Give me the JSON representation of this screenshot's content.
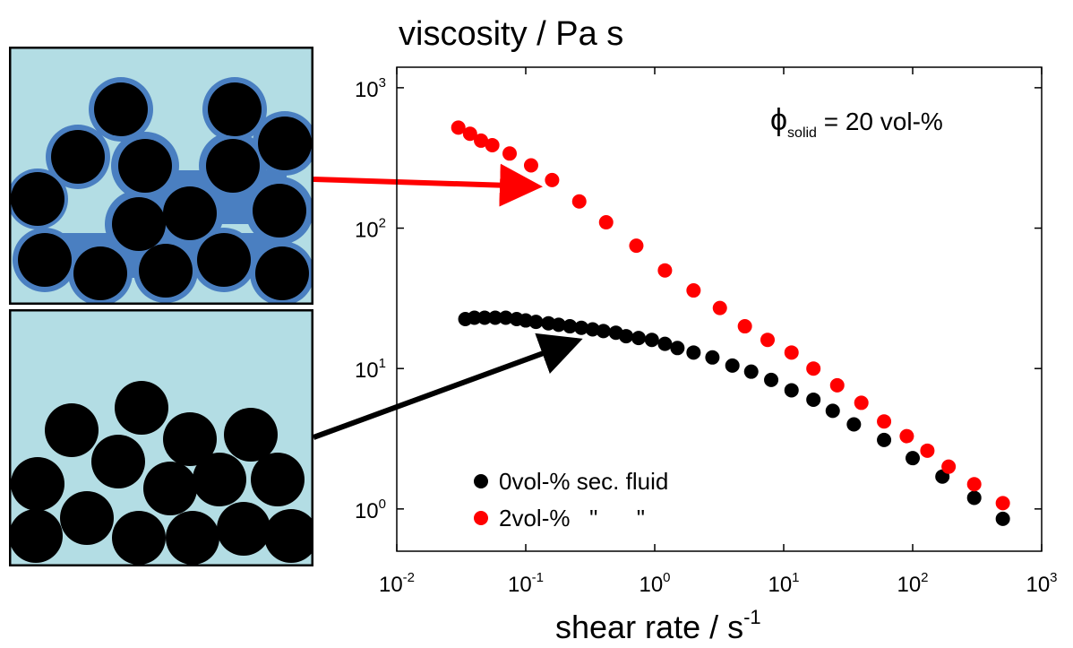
{
  "chart_data": {
    "type": "scatter",
    "title": "viscosity / Pa s",
    "x_label": {
      "text": "shear rate / s",
      "sup": "-1"
    },
    "annotation": {
      "symbol": "ϕ",
      "subscript": "solid",
      "text": " = 20 vol-%"
    },
    "log_x": true,
    "log_y": true,
    "xlim": [
      0.01,
      1000
    ],
    "ylim": [
      0.5,
      1400
    ],
    "xticks": [
      {
        "value": 0.01,
        "label": "10",
        "sup": "-2"
      },
      {
        "value": 0.1,
        "label": "10",
        "sup": "-1"
      },
      {
        "value": 1,
        "label": "10",
        "sup": "0"
      },
      {
        "value": 10,
        "label": "10",
        "sup": "1"
      },
      {
        "value": 100,
        "label": "10",
        "sup": "2"
      },
      {
        "value": 1000,
        "label": "10",
        "sup": "3"
      }
    ],
    "yticks": [
      {
        "value": 1,
        "label": "10",
        "sup": "0"
      },
      {
        "value": 10,
        "label": "10",
        "sup": "1"
      },
      {
        "value": 100,
        "label": "10",
        "sup": "2"
      },
      {
        "value": 1000,
        "label": "10",
        "sup": "3"
      }
    ],
    "series": [
      {
        "name": "0vol-% sec. fluid",
        "color": "#000000",
        "x": [
          0.034,
          0.04,
          0.048,
          0.058,
          0.07,
          0.085,
          0.1,
          0.12,
          0.15,
          0.18,
          0.22,
          0.27,
          0.33,
          0.4,
          0.5,
          0.6,
          0.75,
          0.95,
          1.2,
          1.5,
          2,
          2.8,
          4,
          5.6,
          8,
          11.5,
          17,
          24,
          35,
          60,
          100,
          170,
          300,
          500
        ],
        "values": [
          22.5,
          23,
          23,
          23,
          23,
          22.5,
          22,
          21.5,
          21,
          20.5,
          20,
          19.5,
          19,
          18.5,
          18,
          17,
          16.5,
          16,
          15,
          14,
          13,
          12,
          10.5,
          9.5,
          8.3,
          7,
          6,
          5,
          4,
          3.1,
          2.3,
          1.7,
          1.2,
          0.85
        ]
      },
      {
        "name": "2vol-%   \"      \"",
        "color": "#ff0000",
        "x": [
          0.03,
          0.037,
          0.045,
          0.055,
          0.075,
          0.11,
          0.16,
          0.26,
          0.42,
          0.72,
          1.2,
          2,
          3.2,
          5,
          7.5,
          11.5,
          17,
          26,
          40,
          60,
          90,
          130,
          190,
          300,
          500
        ],
        "values": [
          520,
          470,
          420,
          390,
          340,
          280,
          220,
          155,
          110,
          75,
          50,
          36,
          27,
          20,
          16,
          13,
          10,
          7.6,
          5.7,
          4.2,
          3.3,
          2.6,
          2.0,
          1.5,
          1.1
        ]
      }
    ]
  }
}
